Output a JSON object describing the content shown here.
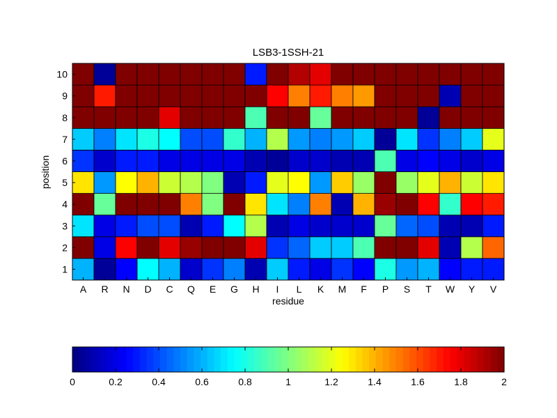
{
  "chart_data": {
    "type": "heatmap",
    "title": "LSB3-1SSH-21",
    "xlabel": "residue",
    "ylabel": "position",
    "x_categories": [
      "A",
      "R",
      "N",
      "D",
      "C",
      "Q",
      "E",
      "G",
      "H",
      "I",
      "L",
      "K",
      "M",
      "F",
      "P",
      "S",
      "T",
      "W",
      "Y",
      "V"
    ],
    "y_categories": [
      "1",
      "2",
      "3",
      "4",
      "5",
      "6",
      "7",
      "8",
      "9",
      "10"
    ],
    "values": [
      [
        0.6,
        0.05,
        0.25,
        0.75,
        0.6,
        0.15,
        0.35,
        0.5,
        0.1,
        0.65,
        0.3,
        0.2,
        0.35,
        0.25,
        0.8,
        0.55,
        0.6,
        0.25,
        0.3,
        0.3
      ],
      [
        2.0,
        0.2,
        1.75,
        2.0,
        1.8,
        1.95,
        2.0,
        2.0,
        1.8,
        0.35,
        0.45,
        0.65,
        0.65,
        0.9,
        2.0,
        2.0,
        1.8,
        0.1,
        1.1,
        1.55
      ],
      [
        0.7,
        0.2,
        0.3,
        0.4,
        0.4,
        0.1,
        0.3,
        0.75,
        1.1,
        0.1,
        0.2,
        0.15,
        0.15,
        0.15,
        0.95,
        0.45,
        0.4,
        0.1,
        0.1,
        0.3
      ],
      [
        2.0,
        0.95,
        2.0,
        2.0,
        2.0,
        1.5,
        1.0,
        2.0,
        1.3,
        0.7,
        0.5,
        1.5,
        0.1,
        1.4,
        1.95,
        2.0,
        1.75,
        0.85,
        1.75,
        1.7
      ],
      [
        1.3,
        0.55,
        1.25,
        1.4,
        1.15,
        1.1,
        1.0,
        0.1,
        0.3,
        1.2,
        1.25,
        0.55,
        1.35,
        1.05,
        2.0,
        1.05,
        1.2,
        1.4,
        1.15,
        1.3
      ],
      [
        0.35,
        0.15,
        0.3,
        0.3,
        0.2,
        0.2,
        0.2,
        0.2,
        0.1,
        0.05,
        0.15,
        0.15,
        0.1,
        0.1,
        0.9,
        0.2,
        0.25,
        0.2,
        0.15,
        0.2
      ],
      [
        0.65,
        0.5,
        0.7,
        0.8,
        0.75,
        0.4,
        0.4,
        0.85,
        0.6,
        1.1,
        0.55,
        0.5,
        0.55,
        0.65,
        0.05,
        0.7,
        0.35,
        0.5,
        0.65,
        1.2
      ],
      [
        2.0,
        2.0,
        2.0,
        2.0,
        1.8,
        2.0,
        2.0,
        2.0,
        0.9,
        2.0,
        2.0,
        0.95,
        2.0,
        2.0,
        2.0,
        2.0,
        0.05,
        2.0,
        2.0,
        2.0
      ],
      [
        2.0,
        1.7,
        2.0,
        2.0,
        2.0,
        2.0,
        2.0,
        2.0,
        2.0,
        1.75,
        1.5,
        1.7,
        1.5,
        1.45,
        2.0,
        2.0,
        2.0,
        0.1,
        2.0,
        2.0
      ],
      [
        2.0,
        0.05,
        2.0,
        2.0,
        2.0,
        2.0,
        2.0,
        2.0,
        0.3,
        2.0,
        1.9,
        1.8,
        2.0,
        2.0,
        2.0,
        2.0,
        2.0,
        2.0,
        2.0,
        2.0
      ]
    ],
    "value_range": [
      0,
      2
    ],
    "colormap": "jet",
    "colorbar": {
      "orientation": "horizontal",
      "placement": "bottom",
      "ticks": [
        "0",
        "0.2",
        "0.4",
        "0.6",
        "0.8",
        "1",
        "1.2",
        "1.4",
        "1.6",
        "1.8",
        "2"
      ]
    }
  }
}
